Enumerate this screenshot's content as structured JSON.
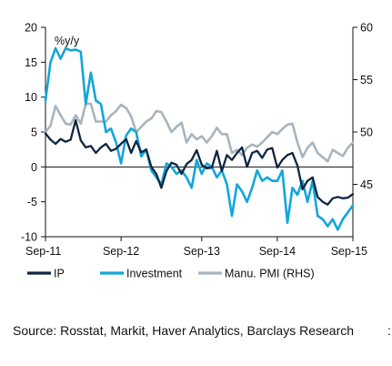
{
  "chart_data": {
    "type": "line",
    "unit_label": "%y/y",
    "x_ticks": [
      "Sep-11",
      "Sep-12",
      "Sep-13",
      "Sep-14",
      "Sep-15"
    ],
    "y_left": {
      "lim": [
        -10,
        20
      ],
      "ticks": [
        -10,
        -5,
        0,
        5,
        10,
        15,
        20
      ]
    },
    "y_right": {
      "lim": [
        40,
        60
      ],
      "ticks": [
        45,
        50,
        55,
        60
      ]
    },
    "colors": {
      "IP": "#0f2640",
      "Investment": "#12a6dc",
      "PMI": "#a9b4bd"
    },
    "series": [
      {
        "name": "IP",
        "axis": "left",
        "values": [
          4.8,
          3.9,
          3.3,
          4.0,
          3.6,
          3.9,
          6.7,
          3.8,
          2.8,
          3.0,
          2.0,
          2.8,
          3.3,
          2.3,
          2.6,
          3.3,
          4.0,
          2.0,
          3.7,
          2.1,
          2.5,
          0.0,
          -1.0,
          -3.0,
          -0.6,
          0.6,
          0.3,
          -1.0,
          0.4,
          1.0,
          2.4,
          0.3,
          -0.2,
          -0.1,
          2.3,
          -0.6,
          1.7,
          1.0,
          2.0,
          2.8,
          0.0,
          2.0,
          2.3,
          1.3,
          2.5,
          2.7,
          -0.1,
          1.0,
          1.7,
          2.0,
          0.2,
          -3.2,
          -2.0,
          -1.5,
          -4.3,
          -5.0,
          -5.4,
          -4.5,
          -4.3,
          -4.5,
          -4.4,
          -3.9
        ]
      },
      {
        "name": "Investment",
        "axis": "left",
        "values": [
          9.5,
          15.0,
          17.0,
          15.5,
          17.0,
          16.7,
          16.8,
          16.5,
          9.0,
          13.5,
          9.5,
          9.0,
          5.0,
          5.5,
          3.5,
          0.5,
          4.5,
          5.5,
          5.0,
          1.5,
          2.5,
          -0.5,
          -1.5,
          -2.5,
          0.5,
          0.0,
          -1.0,
          -0.5,
          -1.5,
          -3.0,
          1.0,
          -1.0,
          0.5,
          0.0,
          -1.5,
          -0.5,
          -2.5,
          -7.0,
          -2.5,
          -3.5,
          -5.0,
          -3.0,
          -0.5,
          -2.0,
          -1.5,
          -2.0,
          -2.0,
          -0.5,
          -8.0,
          -3.0,
          -4.0,
          -2.0,
          -5.0,
          -2.0,
          -7.0,
          -7.5,
          -8.5,
          -7.5,
          -9.0,
          -7.5,
          -6.5,
          -5.5
        ]
      },
      {
        "name": "Manu. PMI (RHS)",
        "axis": "right",
        "values": [
          50.0,
          50.6,
          52.5,
          51.6,
          50.8,
          50.7,
          51.6,
          50.8,
          52.7,
          52.7,
          51.0,
          51.0,
          51.0,
          51.6,
          52.0,
          52.6,
          52.3,
          51.5,
          50.0,
          50.5,
          51.0,
          51.3,
          52.0,
          51.9,
          51.0,
          50.0,
          50.5,
          50.9,
          49.0,
          49.8,
          49.3,
          49.6,
          49.0,
          49.6,
          50.4,
          49.8,
          49.8,
          48.0,
          48.3,
          47.8,
          48.5,
          48.8,
          48.6,
          49.0,
          49.5,
          50.0,
          49.8,
          50.3,
          50.7,
          50.8,
          49.0,
          47.6,
          48.5,
          49.0,
          48.0,
          47.6,
          47.2,
          48.3,
          48.0,
          47.7,
          48.5,
          49.0
        ]
      }
    ],
    "legend": {
      "position": "bottom",
      "items": [
        "IP",
        "Investment",
        "Manu. PMI (RHS)"
      ]
    }
  },
  "source": "Source: Rosstat, Markit, Haver Analytics, Barclays Research",
  "stray_mark": ":"
}
